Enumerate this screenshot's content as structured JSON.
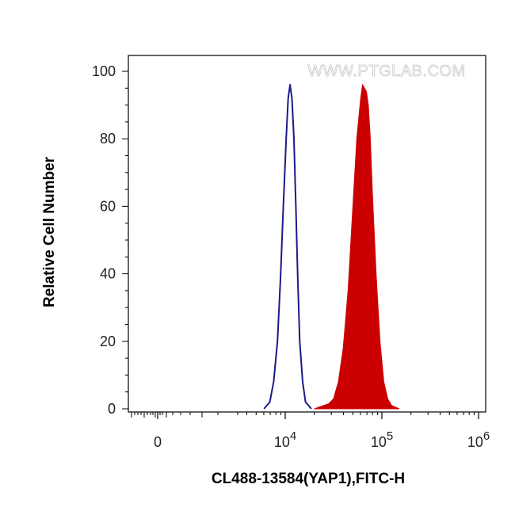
{
  "watermark": "WWW.PTGLAB.COM",
  "colors": {
    "control_line": "#1a1a8c",
    "sample_fill": "#cc0000",
    "axis": "#000000"
  },
  "chart_data": {
    "type": "area",
    "xlabel": "CL488-13584(YAP1),FITC-H",
    "ylabel": "Relative Cell Number",
    "x_scale": "biexponential (log above 10^3)",
    "xlim_exponent": [
      2.4,
      6.0
    ],
    "ylim": [
      0,
      100
    ],
    "yticks": [
      0,
      20,
      40,
      60,
      80,
      100
    ],
    "xticks": [
      {
        "label": "0",
        "base": "0",
        "exp": ""
      },
      {
        "label": "10^4",
        "base": "10",
        "exp": "4"
      },
      {
        "label": "10^5",
        "base": "10",
        "exp": "5"
      },
      {
        "label": "10^6",
        "base": "10",
        "exp": "6"
      }
    ],
    "grid": false,
    "legend": "none",
    "series": [
      {
        "style": "outline",
        "color": "#1a1a8c",
        "x_exponent": [
          3.78,
          3.84,
          3.88,
          3.92,
          3.95,
          3.98,
          4.01,
          4.03,
          4.05,
          4.07,
          4.09,
          4.11,
          4.13,
          4.15,
          4.18,
          4.21,
          4.24,
          4.27
        ],
        "values": [
          0,
          2,
          8,
          20,
          38,
          60,
          80,
          92,
          96,
          92,
          80,
          60,
          38,
          20,
          8,
          2,
          1,
          0
        ]
      },
      {
        "style": "filled",
        "color": "#cc0000",
        "x_exponent": [
          4.3,
          4.35,
          4.4,
          4.45,
          4.5,
          4.55,
          4.6,
          4.65,
          4.7,
          4.74,
          4.78,
          4.8,
          4.82,
          4.84,
          4.86,
          4.88,
          4.9,
          4.94,
          4.98,
          5.02,
          5.06,
          5.1,
          5.14,
          5.18
        ],
        "values": [
          0,
          0.5,
          1,
          1.5,
          3,
          8,
          18,
          35,
          60,
          80,
          92,
          96,
          95,
          94,
          90,
          80,
          65,
          40,
          20,
          8,
          3,
          1,
          0.5,
          0
        ]
      }
    ]
  }
}
